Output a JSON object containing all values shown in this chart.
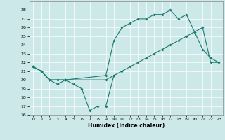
{
  "xlabel": "Humidex (Indice chaleur)",
  "bg_color": "#cce8e8",
  "grid_color": "#ffffff",
  "line_color": "#1a7a6e",
  "xlim": [
    -0.5,
    23.5
  ],
  "ylim": [
    16,
    29
  ],
  "yticks": [
    16,
    17,
    18,
    19,
    20,
    21,
    22,
    23,
    24,
    25,
    26,
    27,
    28
  ],
  "xticks": [
    0,
    1,
    2,
    3,
    4,
    5,
    6,
    7,
    8,
    9,
    10,
    11,
    12,
    13,
    14,
    15,
    16,
    17,
    18,
    19,
    20,
    21,
    22,
    23
  ],
  "x_dip": [
    0,
    1,
    2,
    3,
    4,
    5,
    6,
    7,
    8,
    9,
    10
  ],
  "y_dip": [
    21.5,
    21.0,
    20.0,
    19.5,
    20.0,
    19.5,
    19.0,
    16.5,
    17.0,
    17.0,
    20.5
  ],
  "x_low": [
    0,
    1,
    2,
    3,
    4,
    9,
    10,
    11,
    12,
    13,
    14,
    15,
    16,
    17,
    18,
    19,
    20,
    21,
    22,
    23
  ],
  "y_low": [
    21.5,
    21.0,
    20.0,
    20.0,
    20.0,
    20.0,
    20.5,
    21.0,
    21.5,
    22.0,
    22.5,
    23.0,
    23.5,
    24.0,
    24.5,
    25.0,
    25.5,
    26.0,
    22.0,
    22.0
  ],
  "x_high": [
    0,
    1,
    2,
    3,
    4,
    9,
    10,
    11,
    12,
    13,
    14,
    15,
    16,
    17,
    18,
    19,
    20,
    21,
    22,
    23
  ],
  "y_high": [
    21.5,
    21.0,
    20.0,
    20.0,
    20.0,
    20.5,
    24.5,
    26.0,
    26.5,
    27.0,
    27.0,
    27.5,
    27.5,
    28.0,
    27.0,
    27.5,
    25.5,
    23.5,
    22.5,
    22.0
  ]
}
